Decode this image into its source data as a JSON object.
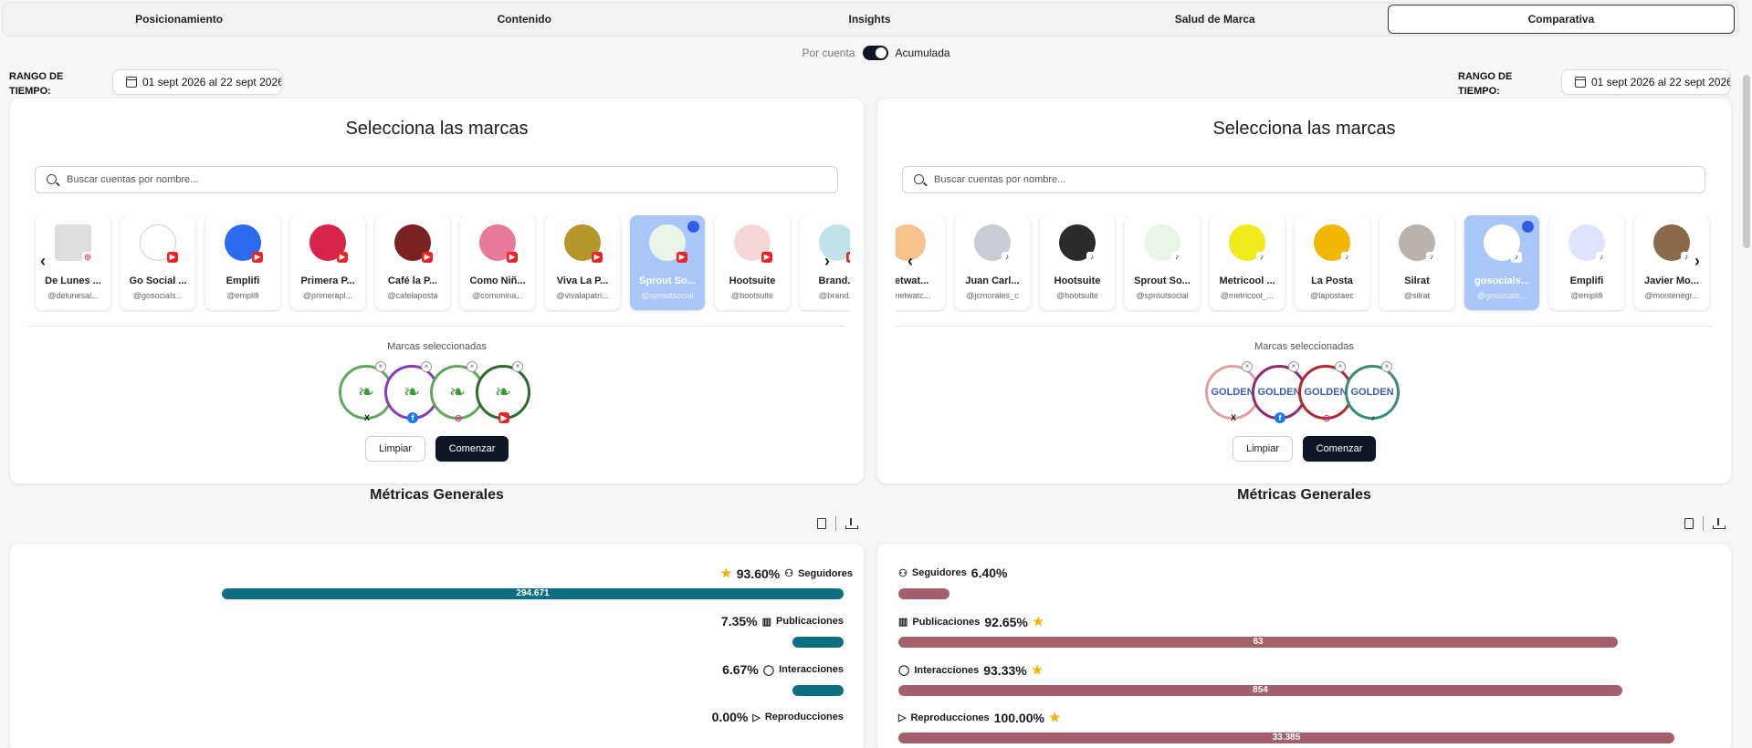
{
  "tabs": [
    "Posicionamiento",
    "Contenido",
    "Insights",
    "Salud de Marca",
    "Comparativa"
  ],
  "active_tab": 4,
  "toggle": {
    "left": "Por cuenta",
    "right": "Acumulada"
  },
  "range_label_1": "RANGO DE",
  "range_label_2": "TIEMPO:",
  "date_range": "01 sept 2026 al 22 sept 2026",
  "panel_title": "Selecciona las marcas",
  "search_placeholder": "Buscar cuentas por nombre...",
  "selected_label": "Marcas seleccionadas",
  "clear_label": "Limpiar",
  "start_label": "Comenzar",
  "metrics_title": "Métricas Generales",
  "left_cards": [
    {
      "name": "De Lunes ...",
      "handle": "@delunesal..."
    },
    {
      "name": "Go Social ...",
      "handle": "@gosocials..."
    },
    {
      "name": "Emplifi",
      "handle": "@emplifi"
    },
    {
      "name": "Primera P...",
      "handle": "@primerapl..."
    },
    {
      "name": "Café la P...",
      "handle": "@cafelaposta"
    },
    {
      "name": "Como Niñ...",
      "handle": "@comonina..."
    },
    {
      "name": "Viva La P...",
      "handle": "@vivalapatri..."
    },
    {
      "name": "Sprout So...",
      "handle": "@sproutsocial"
    },
    {
      "name": "Hootsuite",
      "handle": "@hootsuite"
    },
    {
      "name": "Brand...",
      "handle": "@brand..."
    }
  ],
  "right_cards": [
    {
      "name": "Metwat...",
      "handle": "@metwatc..."
    },
    {
      "name": "Juan Carl...",
      "handle": "@jcmorales_c"
    },
    {
      "name": "Hootsuite",
      "handle": "@hootsuite"
    },
    {
      "name": "Sprout So...",
      "handle": "@sproutsocial"
    },
    {
      "name": "Metricool ...",
      "handle": "@metricool_..."
    },
    {
      "name": "La Posta",
      "handle": "@lapostaec"
    },
    {
      "name": "Silrat",
      "handle": "@silrat"
    },
    {
      "name": "gosocials...",
      "handle": "@gosocials..."
    },
    {
      "name": "Emplifi",
      "handle": "@emplifi"
    },
    {
      "name": "Javier Mo...",
      "handle": "@montenegr..."
    }
  ],
  "left_metrics": [
    {
      "label": "Seguidores",
      "pct": "93.60%",
      "value": "294.671",
      "fraction": 0.936
    },
    {
      "label": "Publicaciones",
      "pct": "7.35%",
      "value": "",
      "fraction": 0.0735
    },
    {
      "label": "Interacciones",
      "pct": "6.67%",
      "value": "",
      "fraction": 0.0667
    },
    {
      "label": "Reproducciones",
      "pct": "0.00%",
      "value": "",
      "fraction": 0.0
    }
  ],
  "right_metrics": [
    {
      "label": "Seguidores",
      "pct": "6.40%",
      "value": "",
      "fraction": 0.064
    },
    {
      "label": "Publicaciones",
      "pct": "92.65%",
      "value": "63",
      "fraction": 0.9265
    },
    {
      "label": "Interacciones",
      "pct": "93.33%",
      "value": "854",
      "fraction": 0.9333
    },
    {
      "label": "Reproducciones",
      "pct": "100.00%",
      "value": "33.385",
      "fraction": 1.0
    }
  ],
  "colors": {
    "left_bar": "#0e6e82",
    "right_bar": "#a3606a",
    "selected_card": "#a8c6f7",
    "dark_button": "#0f1626"
  }
}
